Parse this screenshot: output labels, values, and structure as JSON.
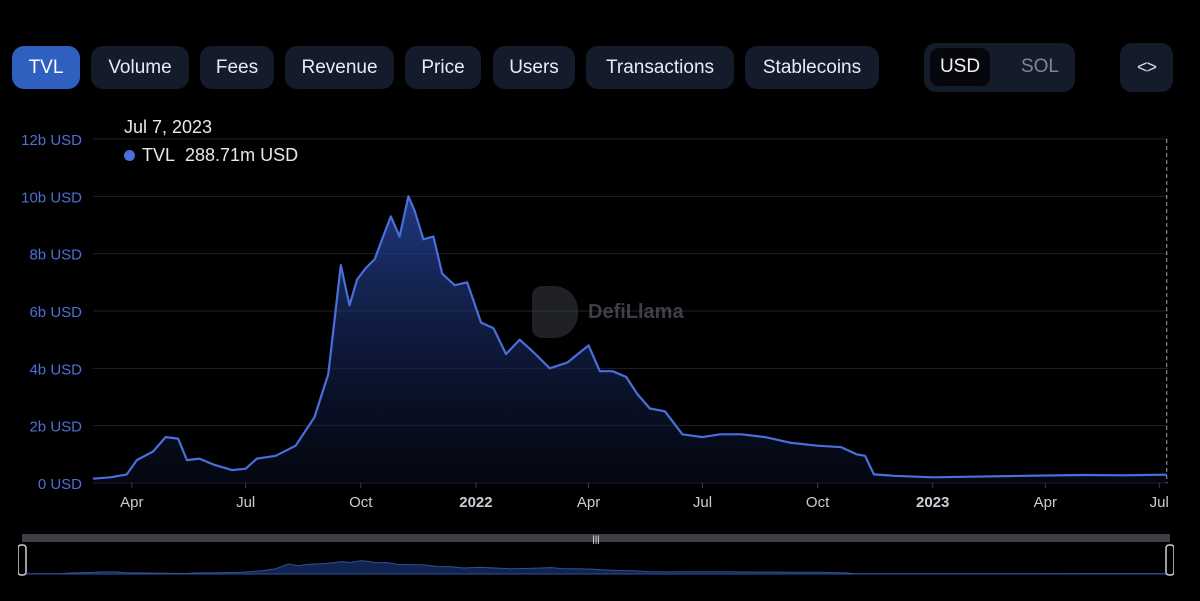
{
  "tabs": [
    {
      "label": "TVL",
      "active": true
    },
    {
      "label": "Volume",
      "active": false
    },
    {
      "label": "Fees",
      "active": false
    },
    {
      "label": "Revenue",
      "active": false
    },
    {
      "label": "Price",
      "active": false
    },
    {
      "label": "Users",
      "active": false
    },
    {
      "label": "Transactions",
      "active": false
    },
    {
      "label": "Stablecoins",
      "active": false
    }
  ],
  "currency_toggle": {
    "selected": "USD",
    "other": "SOL"
  },
  "embed_icon": "code-brackets-icon",
  "tooltip": {
    "date": "Jul 7, 2023",
    "series": "TVL",
    "value": "288.71m USD"
  },
  "watermark": {
    "text": "DefiLlama"
  },
  "colors": {
    "accent": "#2f5fbf",
    "line": "#4a6fdc",
    "background": "#000000",
    "button": "#141c2b"
  },
  "chart_data": {
    "type": "area",
    "title": "",
    "xlabel": "",
    "ylabel": "",
    "x_ticks": [
      "Apr",
      "Jul",
      "Oct",
      "2022",
      "Apr",
      "Jul",
      "Oct",
      "2023",
      "Apr",
      "Jul"
    ],
    "y_ticks": [
      "0 USD",
      "2b USD",
      "4b USD",
      "6b USD",
      "8b USD",
      "10b USD",
      "12b USD"
    ],
    "ylim": [
      0,
      12
    ],
    "y_unit": "billion USD",
    "xlim": [
      "2021-03-01",
      "2023-07-08"
    ],
    "grid": true,
    "series": [
      {
        "name": "TVL",
        "x": [
          "2021-03-01",
          "2021-03-15",
          "2021-03-28",
          "2021-04-05",
          "2021-04-18",
          "2021-04-28",
          "2021-05-08",
          "2021-05-15",
          "2021-05-25",
          "2021-06-05",
          "2021-06-20",
          "2021-07-01",
          "2021-07-10",
          "2021-07-25",
          "2021-08-10",
          "2021-08-25",
          "2021-09-05",
          "2021-09-15",
          "2021-09-22",
          "2021-09-28",
          "2021-10-05",
          "2021-10-12",
          "2021-10-18",
          "2021-10-25",
          "2021-11-01",
          "2021-11-08",
          "2021-11-13",
          "2021-11-20",
          "2021-11-28",
          "2021-12-05",
          "2021-12-15",
          "2021-12-25",
          "2022-01-05",
          "2022-01-15",
          "2022-01-25",
          "2022-02-05",
          "2022-02-15",
          "2022-03-01",
          "2022-03-15",
          "2022-04-01",
          "2022-04-10",
          "2022-04-20",
          "2022-05-01",
          "2022-05-10",
          "2022-05-20",
          "2022-06-01",
          "2022-06-15",
          "2022-07-01",
          "2022-07-15",
          "2022-08-01",
          "2022-08-20",
          "2022-09-10",
          "2022-10-01",
          "2022-10-20",
          "2022-11-01",
          "2022-11-08",
          "2022-11-15",
          "2022-12-01",
          "2023-01-01",
          "2023-02-01",
          "2023-03-01",
          "2023-04-01",
          "2023-05-01",
          "2023-06-01",
          "2023-07-07"
        ],
        "values": [
          0.15,
          0.2,
          0.3,
          0.8,
          1.1,
          1.6,
          1.55,
          0.8,
          0.85,
          0.65,
          0.45,
          0.5,
          0.85,
          0.95,
          1.3,
          2.3,
          3.8,
          7.6,
          6.2,
          7.1,
          7.5,
          7.8,
          8.5,
          9.3,
          8.6,
          10.0,
          9.5,
          8.5,
          8.6,
          7.3,
          6.9,
          7.0,
          5.6,
          5.4,
          4.5,
          5.0,
          4.6,
          4.0,
          4.2,
          4.8,
          3.9,
          3.9,
          3.7,
          3.1,
          2.6,
          2.5,
          1.7,
          1.6,
          1.7,
          1.7,
          1.6,
          1.4,
          1.3,
          1.25,
          1.0,
          0.95,
          0.3,
          0.25,
          0.2,
          0.22,
          0.24,
          0.26,
          0.28,
          0.27,
          0.29
        ]
      }
    ]
  }
}
